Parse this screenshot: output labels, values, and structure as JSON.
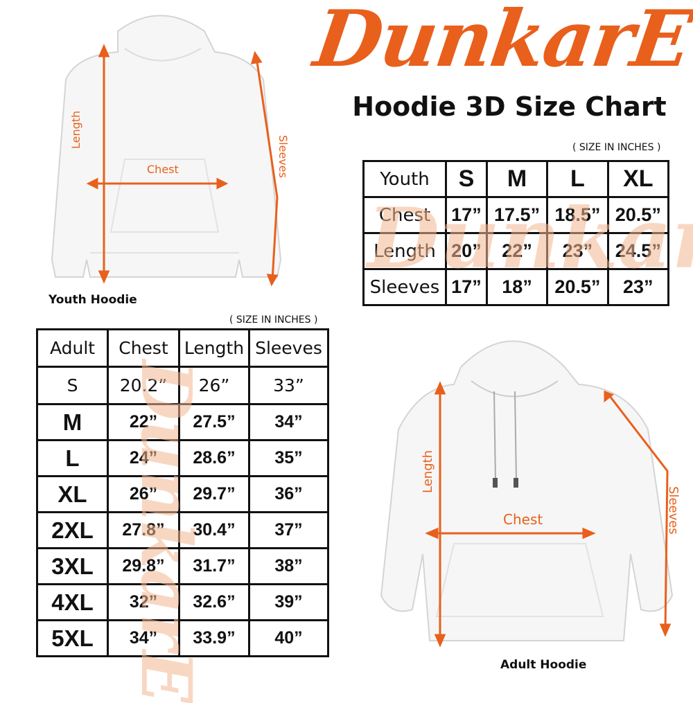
{
  "brand": {
    "logo_text": "DunkarE",
    "color": "#e8601c"
  },
  "title": "Hoodie 3D Size Chart",
  "youth": {
    "units_note": "( SIZE IN INCHES )",
    "image_label": "Youth Hoodie",
    "annotations": {
      "length": "Length",
      "chest": "Chest",
      "sleeves": "Sleeves"
    },
    "table": {
      "headers": [
        "Youth",
        "S",
        "M",
        "L",
        "XL"
      ],
      "rows": [
        [
          "Chest",
          "17”",
          "17.5”",
          "18.5”",
          "20.5”"
        ],
        [
          "Length",
          "20”",
          "22”",
          "23”",
          "24.5”"
        ],
        [
          "Sleeves",
          "17”",
          "18”",
          "20.5”",
          "23”"
        ]
      ]
    }
  },
  "adult": {
    "units_note": "( SIZE IN INCHES )",
    "image_label": "Adult Hoodie",
    "annotations": {
      "length": "Length",
      "chest": "Chest",
      "sleeves": "Sleeves"
    },
    "table": {
      "headers": [
        "Adult",
        "Chest",
        "Length",
        "Sleeves"
      ],
      "rows": [
        [
          "S",
          "20.2”",
          "26”",
          "33”"
        ],
        [
          "M",
          "22”",
          "27.5”",
          "34”"
        ],
        [
          "L",
          "24”",
          "28.6”",
          "35”"
        ],
        [
          "XL",
          "26”",
          "29.7”",
          "36”"
        ],
        [
          "2XL",
          "27.8”",
          "30.4”",
          "37”"
        ],
        [
          "3XL",
          "29.8”",
          "31.7”",
          "38”"
        ],
        [
          "4XL",
          "32”",
          "32.6”",
          "39”"
        ],
        [
          "5XL",
          "34”",
          "33.9”",
          "40”"
        ]
      ]
    }
  }
}
